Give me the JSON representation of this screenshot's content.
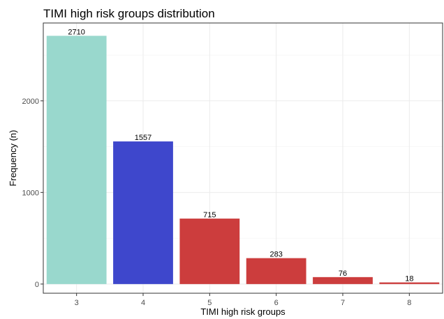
{
  "chart_data": {
    "type": "bar",
    "title": "TIMI high risk groups distribution",
    "xlabel": "TIMI high risk groups",
    "ylabel": "Frequency (n)",
    "categories": [
      "3",
      "4",
      "5",
      "6",
      "7",
      "8"
    ],
    "values": [
      2710,
      1557,
      715,
      283,
      76,
      18
    ],
    "value_labels": [
      "2710",
      "1557",
      "715",
      "283",
      "76",
      "18"
    ],
    "bar_colors": [
      "#99d8cd",
      "#3e47cc",
      "#cc3d3d",
      "#cc3d3d",
      "#cc3d3d",
      "#cc3d3d"
    ],
    "ylim": [
      -100,
      2850
    ],
    "yticks": [
      0,
      1000,
      2000
    ],
    "ytick_labels": [
      "0",
      "1000",
      "2000"
    ],
    "grid": true,
    "legend": "none"
  }
}
